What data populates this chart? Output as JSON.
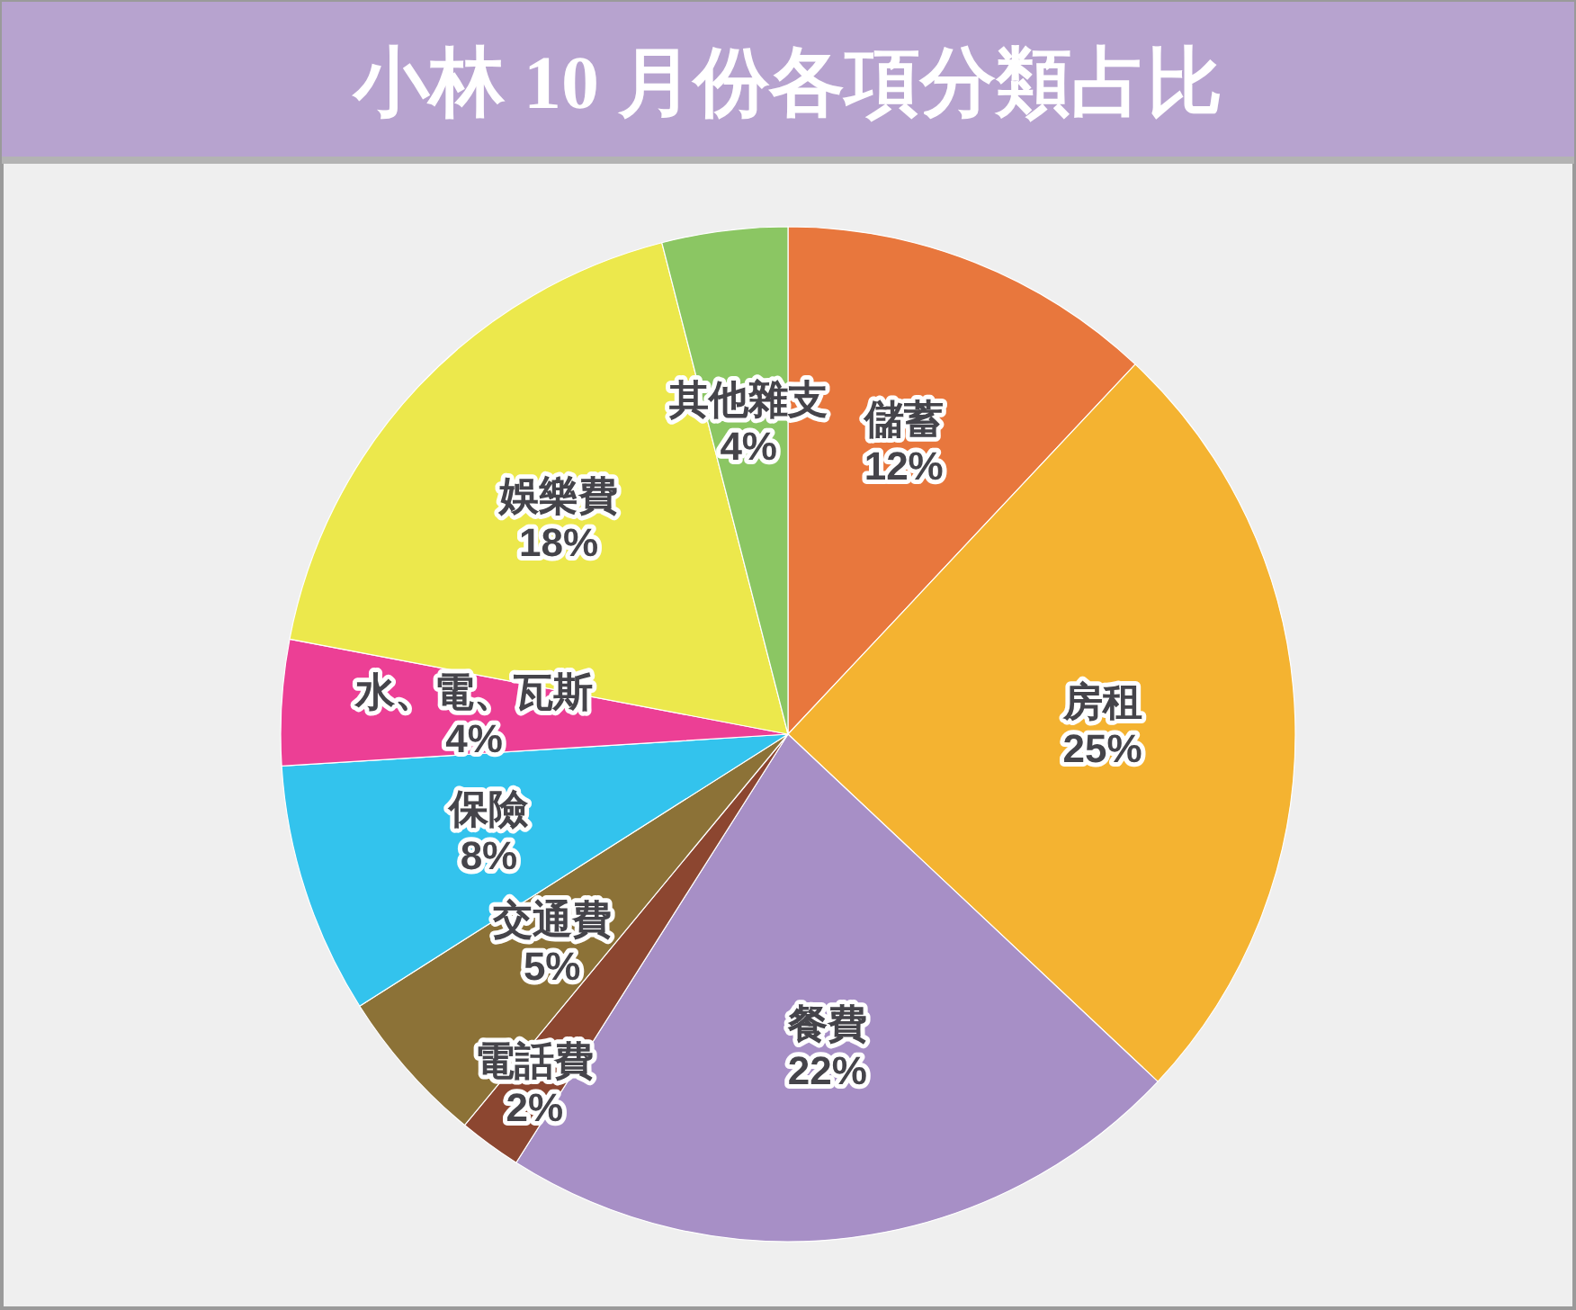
{
  "chart_data": {
    "type": "pie",
    "title": "小林 10 月份各項分類占比",
    "categories": [
      "儲蓄",
      "房租",
      "餐費",
      "電話費",
      "交通費",
      "保險",
      "水、電、瓦斯",
      "娛樂費",
      "其他雜支"
    ],
    "values": [
      12,
      25,
      22,
      2,
      5,
      8,
      4,
      18,
      4
    ],
    "value_labels": [
      "12%",
      "25%",
      "22%",
      "2%",
      "5%",
      "8%",
      "4%",
      "18%",
      "4%"
    ],
    "colors": [
      "#e8773d",
      "#f4b331",
      "#a78fc6",
      "#8c4630",
      "#8c7237",
      "#33c3ed",
      "#ec3f95",
      "#ece84c",
      "#8bc663"
    ]
  }
}
